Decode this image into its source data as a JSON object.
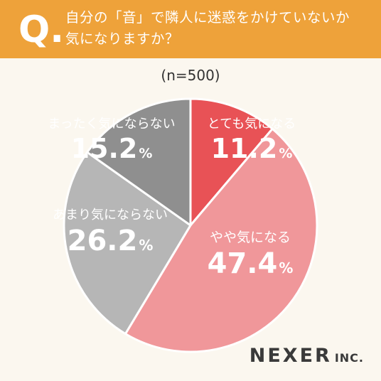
{
  "header": {
    "q_label": "Q.",
    "question_line1": "自分の「音」で隣人に迷惑をかけていないか",
    "question_line2": "気になりますか？"
  },
  "sample_size": "(n=500)",
  "colors": {
    "header_bg": "#eea23a",
    "page_bg": "#fbf7ef"
  },
  "logo": {
    "main": "NEXER",
    "suffix": "INC."
  },
  "chart_data": {
    "type": "pie",
    "title": "",
    "series": [
      {
        "name": "とても気になる",
        "value": 11.2,
        "label": "11.2",
        "color": "#e85256"
      },
      {
        "name": "やや気になる",
        "value": 47.4,
        "label": "47.4",
        "color": "#f0979a"
      },
      {
        "name": "あまり気にならない",
        "value": 26.2,
        "label": "26.2",
        "color": "#b6b6b6"
      },
      {
        "name": "まったく気にならない",
        "value": 15.2,
        "label": "15.2",
        "color": "#8f8f8f"
      }
    ],
    "unit": "%",
    "start": "12 o'clock",
    "direction": "clockwise"
  }
}
